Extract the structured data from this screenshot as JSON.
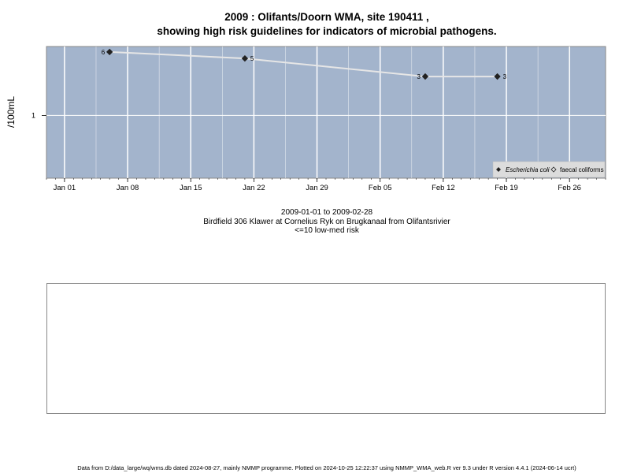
{
  "title_line1": "2009 : Olifants/Doorn WMA, site 190411 ,",
  "title_line2": "showing high risk guidelines for indicators of microbial pathogens.",
  "date_range": "2009-01-01 to 2009-02-28",
  "site_description": "Birdfield 306 Klawer at Cornelius Ryk on Brugkanaal from Olifantsrivier",
  "risk_note": "<=10 low-med risk",
  "footer": "Data from D:/data_large/wq/wms.db dated 2024-08-27, mainly NMMP programme. Plotted on 2024-10-25 12:22:37 using NMMP_WMA_web.R ver 9.3 under R version 4.4.1 (2024-06-14 ucrt)",
  "colors": {
    "panel_bg": "#a3b4cc",
    "grid": "#ffffff",
    "line": "#e6e6e6"
  },
  "chart_data": {
    "type": "line",
    "title": "",
    "xlabel": "",
    "ylabel": "/100mL",
    "y_scale": "log",
    "grid": true,
    "legend_position": "bottom-right",
    "x_tick_labels": [
      "Jan 01",
      "Jan 08",
      "Jan 15",
      "Jan 22",
      "Jan 29",
      "Feb 05",
      "Feb 12",
      "Feb 19",
      "Feb 26"
    ],
    "x_tick_dates": [
      "2009-01-01",
      "2009-01-08",
      "2009-01-15",
      "2009-01-22",
      "2009-01-29",
      "2009-02-05",
      "2009-02-12",
      "2009-02-19",
      "2009-02-26"
    ],
    "y_tick_labels": [
      "1"
    ],
    "y_tick_values": [
      1
    ],
    "xlim": [
      "2008-12-30",
      "2009-03-02"
    ],
    "ylim": [
      0.17,
      7
    ],
    "series": [
      {
        "name": "Escherichia coli",
        "marker": "filled-diamond",
        "points": [
          {
            "x": "2009-01-06",
            "y": 6,
            "label": "6"
          },
          {
            "x": "2009-01-21",
            "y": 5,
            "label": "5"
          },
          {
            "x": "2009-02-10",
            "y": 3,
            "label": "3"
          },
          {
            "x": "2009-02-18",
            "y": 3,
            "label": "3"
          }
        ]
      },
      {
        "name": "faecal coliforms",
        "marker": "open-diamond",
        "points": []
      }
    ]
  }
}
